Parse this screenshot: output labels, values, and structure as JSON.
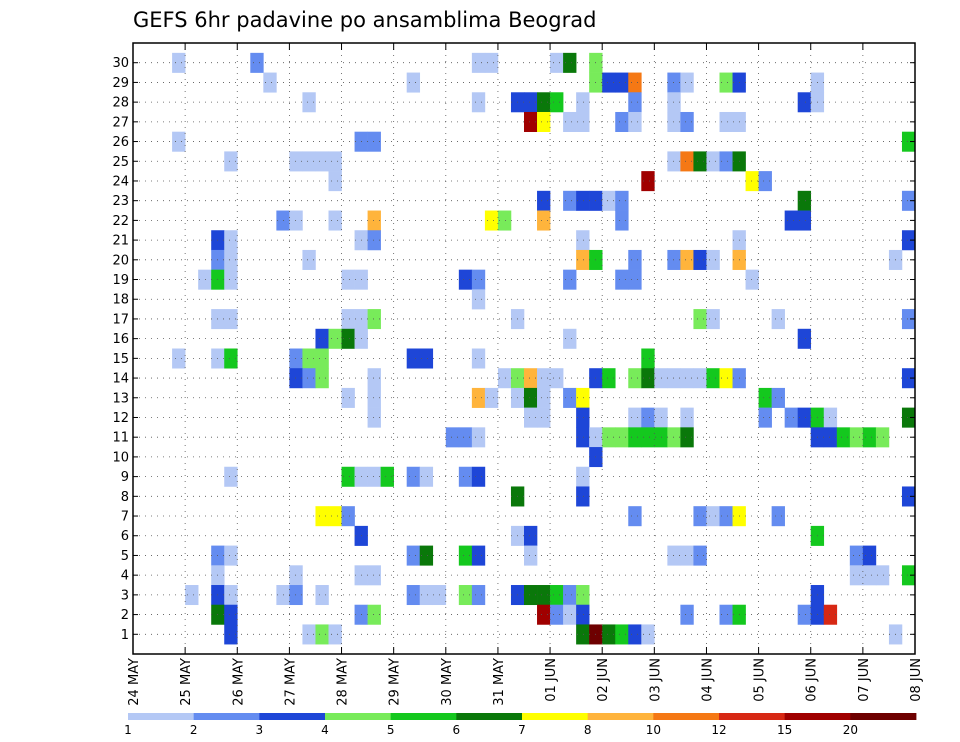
{
  "chart_data": {
    "type": "heatmap",
    "title": "GEFS 6hr padavine po ansamblima Beograd",
    "xlabel": "",
    "ylabel": "",
    "x_tick_labels": [
      "24 MAY",
      "25 MAY",
      "26 MAY",
      "27 MAY",
      "28 MAY",
      "29 MAY",
      "30 MAY",
      "31 MAY",
      "01 JUN",
      "02 JUN",
      "03 JUN",
      "04 JUN",
      "05 JUN",
      "06 JUN",
      "07 JUN",
      "08 JUN"
    ],
    "y_tick_labels": [
      "1",
      "2",
      "3",
      "4",
      "5",
      "6",
      "7",
      "8",
      "9",
      "10",
      "11",
      "12",
      "13",
      "14",
      "15",
      "16",
      "17",
      "18",
      "19",
      "20",
      "21",
      "22",
      "23",
      "24",
      "25",
      "26",
      "27",
      "28",
      "29",
      "30"
    ],
    "x_range": [
      0,
      60
    ],
    "y_range": [
      0,
      31
    ],
    "grid": true,
    "colorbar": {
      "labels": [
        "1",
        "2",
        "3",
        "4",
        "5",
        "6",
        "7",
        "8",
        "10",
        "12",
        "15",
        "20"
      ],
      "colors": [
        "#b4c8f5",
        "#648cf0",
        "#1e46d7",
        "#78eb5a",
        "#14c81e",
        "#0a780a",
        "#ffff00",
        "#ffb43c",
        "#f57814",
        "#d72814",
        "#a00000",
        "#6e0000"
      ]
    },
    "cells_note": "cells: [member(1-30), 6h step index from 24 MAY 00z, color class 1-12]",
    "cells": [
      [
        30,
        3,
        1
      ],
      [
        30,
        9,
        2
      ],
      [
        30,
        26,
        1
      ],
      [
        30,
        27,
        1
      ],
      [
        30,
        32,
        1
      ],
      [
        30,
        33,
        6
      ],
      [
        30,
        35,
        4
      ],
      [
        29,
        10,
        1
      ],
      [
        29,
        21,
        1
      ],
      [
        29,
        35,
        4
      ],
      [
        29,
        36,
        3
      ],
      [
        29,
        37,
        3
      ],
      [
        29,
        38,
        9
      ],
      [
        29,
        41,
        2
      ],
      [
        29,
        42,
        1
      ],
      [
        29,
        45,
        4
      ],
      [
        29,
        46,
        3
      ],
      [
        29,
        52,
        1
      ],
      [
        28,
        13,
        1
      ],
      [
        28,
        26,
        1
      ],
      [
        28,
        29,
        3
      ],
      [
        28,
        30,
        3
      ],
      [
        28,
        31,
        6
      ],
      [
        28,
        32,
        5
      ],
      [
        28,
        34,
        1
      ],
      [
        28,
        38,
        2
      ],
      [
        28,
        41,
        1
      ],
      [
        28,
        51,
        3
      ],
      [
        28,
        52,
        1
      ],
      [
        27,
        30,
        11
      ],
      [
        27,
        31,
        7
      ],
      [
        27,
        33,
        1
      ],
      [
        27,
        34,
        1
      ],
      [
        27,
        37,
        2
      ],
      [
        27,
        38,
        1
      ],
      [
        27,
        41,
        1
      ],
      [
        27,
        42,
        2
      ],
      [
        27,
        45,
        1
      ],
      [
        27,
        46,
        1
      ],
      [
        26,
        3,
        1
      ],
      [
        26,
        17,
        2
      ],
      [
        26,
        18,
        2
      ],
      [
        26,
        59,
        5
      ],
      [
        25,
        7,
        1
      ],
      [
        25,
        12,
        1
      ],
      [
        25,
        13,
        1
      ],
      [
        25,
        14,
        1
      ],
      [
        25,
        15,
        1
      ],
      [
        25,
        41,
        1
      ],
      [
        25,
        42,
        9
      ],
      [
        25,
        43,
        6
      ],
      [
        25,
        44,
        1
      ],
      [
        25,
        45,
        2
      ],
      [
        25,
        46,
        6
      ],
      [
        24,
        15,
        1
      ],
      [
        24,
        39,
        11
      ],
      [
        24,
        47,
        7
      ],
      [
        24,
        48,
        2
      ],
      [
        23,
        31,
        3
      ],
      [
        23,
        33,
        2
      ],
      [
        23,
        34,
        3
      ],
      [
        23,
        35,
        3
      ],
      [
        23,
        36,
        1
      ],
      [
        23,
        37,
        2
      ],
      [
        23,
        51,
        6
      ],
      [
        23,
        59,
        2
      ],
      [
        22,
        11,
        2
      ],
      [
        22,
        12,
        1
      ],
      [
        22,
        15,
        1
      ],
      [
        22,
        18,
        8
      ],
      [
        22,
        27,
        7
      ],
      [
        22,
        28,
        4
      ],
      [
        22,
        31,
        8
      ],
      [
        22,
        37,
        2
      ],
      [
        22,
        50,
        3
      ],
      [
        22,
        51,
        3
      ],
      [
        21,
        6,
        3
      ],
      [
        21,
        7,
        1
      ],
      [
        21,
        17,
        1
      ],
      [
        21,
        18,
        2
      ],
      [
        21,
        34,
        1
      ],
      [
        21,
        46,
        1
      ],
      [
        21,
        59,
        3
      ],
      [
        20,
        6,
        2
      ],
      [
        20,
        7,
        1
      ],
      [
        20,
        13,
        1
      ],
      [
        20,
        34,
        8
      ],
      [
        20,
        35,
        5
      ],
      [
        20,
        38,
        2
      ],
      [
        20,
        41,
        2
      ],
      [
        20,
        42,
        8
      ],
      [
        20,
        43,
        3
      ],
      [
        20,
        44,
        1
      ],
      [
        20,
        46,
        8
      ],
      [
        20,
        58,
        1
      ],
      [
        19,
        5,
        1
      ],
      [
        19,
        6,
        5
      ],
      [
        19,
        7,
        1
      ],
      [
        19,
        16,
        1
      ],
      [
        19,
        17,
        1
      ],
      [
        19,
        25,
        3
      ],
      [
        19,
        26,
        2
      ],
      [
        19,
        33,
        2
      ],
      [
        19,
        37,
        2
      ],
      [
        19,
        38,
        2
      ],
      [
        19,
        47,
        1
      ],
      [
        18,
        26,
        1
      ],
      [
        17,
        6,
        1
      ],
      [
        17,
        7,
        1
      ],
      [
        17,
        16,
        1
      ],
      [
        17,
        17,
        1
      ],
      [
        17,
        18,
        4
      ],
      [
        17,
        29,
        1
      ],
      [
        17,
        43,
        4
      ],
      [
        17,
        44,
        1
      ],
      [
        17,
        49,
        1
      ],
      [
        17,
        59,
        2
      ],
      [
        16,
        14,
        3
      ],
      [
        16,
        15,
        4
      ],
      [
        16,
        16,
        6
      ],
      [
        16,
        17,
        1
      ],
      [
        16,
        33,
        1
      ],
      [
        16,
        51,
        3
      ],
      [
        15,
        3,
        1
      ],
      [
        15,
        6,
        1
      ],
      [
        15,
        7,
        5
      ],
      [
        15,
        12,
        2
      ],
      [
        15,
        13,
        4
      ],
      [
        15,
        14,
        4
      ],
      [
        15,
        21,
        3
      ],
      [
        15,
        22,
        3
      ],
      [
        15,
        26,
        1
      ],
      [
        15,
        39,
        5
      ],
      [
        14,
        12,
        3
      ],
      [
        14,
        13,
        2
      ],
      [
        14,
        14,
        4
      ],
      [
        14,
        18,
        1
      ],
      [
        14,
        28,
        1
      ],
      [
        14,
        29,
        4
      ],
      [
        14,
        30,
        8
      ],
      [
        14,
        31,
        1
      ],
      [
        14,
        32,
        1
      ],
      [
        14,
        35,
        3
      ],
      [
        14,
        36,
        5
      ],
      [
        14,
        38,
        4
      ],
      [
        14,
        39,
        6
      ],
      [
        14,
        40,
        1
      ],
      [
        14,
        41,
        1
      ],
      [
        14,
        42,
        1
      ],
      [
        14,
        43,
        1
      ],
      [
        14,
        44,
        5
      ],
      [
        14,
        45,
        7
      ],
      [
        14,
        46,
        2
      ],
      [
        14,
        59,
        3
      ],
      [
        13,
        16,
        1
      ],
      [
        13,
        18,
        1
      ],
      [
        13,
        26,
        8
      ],
      [
        13,
        27,
        1
      ],
      [
        13,
        29,
        1
      ],
      [
        13,
        30,
        6
      ],
      [
        13,
        31,
        1
      ],
      [
        13,
        33,
        2
      ],
      [
        13,
        34,
        7
      ],
      [
        13,
        48,
        5
      ],
      [
        13,
        49,
        2
      ],
      [
        12,
        18,
        1
      ],
      [
        12,
        30,
        1
      ],
      [
        12,
        31,
        1
      ],
      [
        12,
        34,
        3
      ],
      [
        12,
        38,
        1
      ],
      [
        12,
        39,
        2
      ],
      [
        12,
        40,
        1
      ],
      [
        12,
        42,
        1
      ],
      [
        12,
        48,
        2
      ],
      [
        12,
        50,
        2
      ],
      [
        12,
        51,
        3
      ],
      [
        12,
        52,
        5
      ],
      [
        12,
        53,
        1
      ],
      [
        12,
        59,
        6
      ],
      [
        11,
        24,
        2
      ],
      [
        11,
        25,
        2
      ],
      [
        11,
        26,
        1
      ],
      [
        11,
        34,
        3
      ],
      [
        11,
        35,
        1
      ],
      [
        11,
        36,
        4
      ],
      [
        11,
        37,
        4
      ],
      [
        11,
        38,
        5
      ],
      [
        11,
        39,
        5
      ],
      [
        11,
        40,
        5
      ],
      [
        11,
        41,
        4
      ],
      [
        11,
        42,
        6
      ],
      [
        11,
        52,
        3
      ],
      [
        11,
        53,
        3
      ],
      [
        11,
        54,
        5
      ],
      [
        11,
        55,
        4
      ],
      [
        11,
        56,
        5
      ],
      [
        11,
        57,
        4
      ],
      [
        10,
        35,
        3
      ],
      [
        9,
        7,
        1
      ],
      [
        9,
        16,
        5
      ],
      [
        9,
        17,
        1
      ],
      [
        9,
        18,
        1
      ],
      [
        9,
        19,
        5
      ],
      [
        9,
        21,
        2
      ],
      [
        9,
        22,
        1
      ],
      [
        9,
        25,
        2
      ],
      [
        9,
        26,
        3
      ],
      [
        9,
        34,
        1
      ],
      [
        8,
        29,
        6
      ],
      [
        8,
        34,
        3
      ],
      [
        8,
        59,
        3
      ],
      [
        7,
        14,
        7
      ],
      [
        7,
        15,
        7
      ],
      [
        7,
        16,
        2
      ],
      [
        7,
        38,
        2
      ],
      [
        7,
        43,
        2
      ],
      [
        7,
        44,
        1
      ],
      [
        7,
        45,
        2
      ],
      [
        7,
        46,
        7
      ],
      [
        7,
        49,
        2
      ],
      [
        6,
        17,
        3
      ],
      [
        6,
        29,
        1
      ],
      [
        6,
        30,
        3
      ],
      [
        6,
        52,
        5
      ],
      [
        5,
        6,
        2
      ],
      [
        5,
        7,
        1
      ],
      [
        5,
        21,
        2
      ],
      [
        5,
        22,
        6
      ],
      [
        5,
        25,
        5
      ],
      [
        5,
        26,
        3
      ],
      [
        5,
        30,
        1
      ],
      [
        5,
        41,
        1
      ],
      [
        5,
        42,
        1
      ],
      [
        5,
        43,
        2
      ],
      [
        5,
        55,
        2
      ],
      [
        5,
        56,
        3
      ],
      [
        4,
        6,
        1
      ],
      [
        4,
        12,
        1
      ],
      [
        4,
        17,
        1
      ],
      [
        4,
        18,
        1
      ],
      [
        4,
        55,
        1
      ],
      [
        4,
        56,
        1
      ],
      [
        4,
        57,
        1
      ],
      [
        4,
        59,
        5
      ],
      [
        3,
        4,
        1
      ],
      [
        3,
        6,
        3
      ],
      [
        3,
        7,
        1
      ],
      [
        3,
        11,
        1
      ],
      [
        3,
        12,
        2
      ],
      [
        3,
        14,
        1
      ],
      [
        3,
        21,
        2
      ],
      [
        3,
        22,
        1
      ],
      [
        3,
        23,
        1
      ],
      [
        3,
        25,
        4
      ],
      [
        3,
        26,
        2
      ],
      [
        3,
        29,
        3
      ],
      [
        3,
        30,
        6
      ],
      [
        3,
        31,
        6
      ],
      [
        3,
        32,
        5
      ],
      [
        3,
        33,
        2
      ],
      [
        3,
        34,
        4
      ],
      [
        3,
        52,
        3
      ],
      [
        2,
        6,
        6
      ],
      [
        2,
        7,
        3
      ],
      [
        2,
        17,
        2
      ],
      [
        2,
        18,
        4
      ],
      [
        2,
        31,
        11
      ],
      [
        2,
        32,
        2
      ],
      [
        2,
        33,
        1
      ],
      [
        2,
        34,
        3
      ],
      [
        2,
        42,
        2
      ],
      [
        2,
        45,
        2
      ],
      [
        2,
        46,
        5
      ],
      [
        2,
        51,
        2
      ],
      [
        2,
        52,
        3
      ],
      [
        2,
        53,
        10
      ],
      [
        1,
        7,
        3
      ],
      [
        1,
        13,
        1
      ],
      [
        1,
        14,
        4
      ],
      [
        1,
        15,
        1
      ],
      [
        1,
        34,
        6
      ],
      [
        1,
        35,
        12
      ],
      [
        1,
        36,
        6
      ],
      [
        1,
        37,
        5
      ],
      [
        1,
        38,
        3
      ],
      [
        1,
        39,
        1
      ],
      [
        1,
        58,
        1
      ]
    ]
  }
}
